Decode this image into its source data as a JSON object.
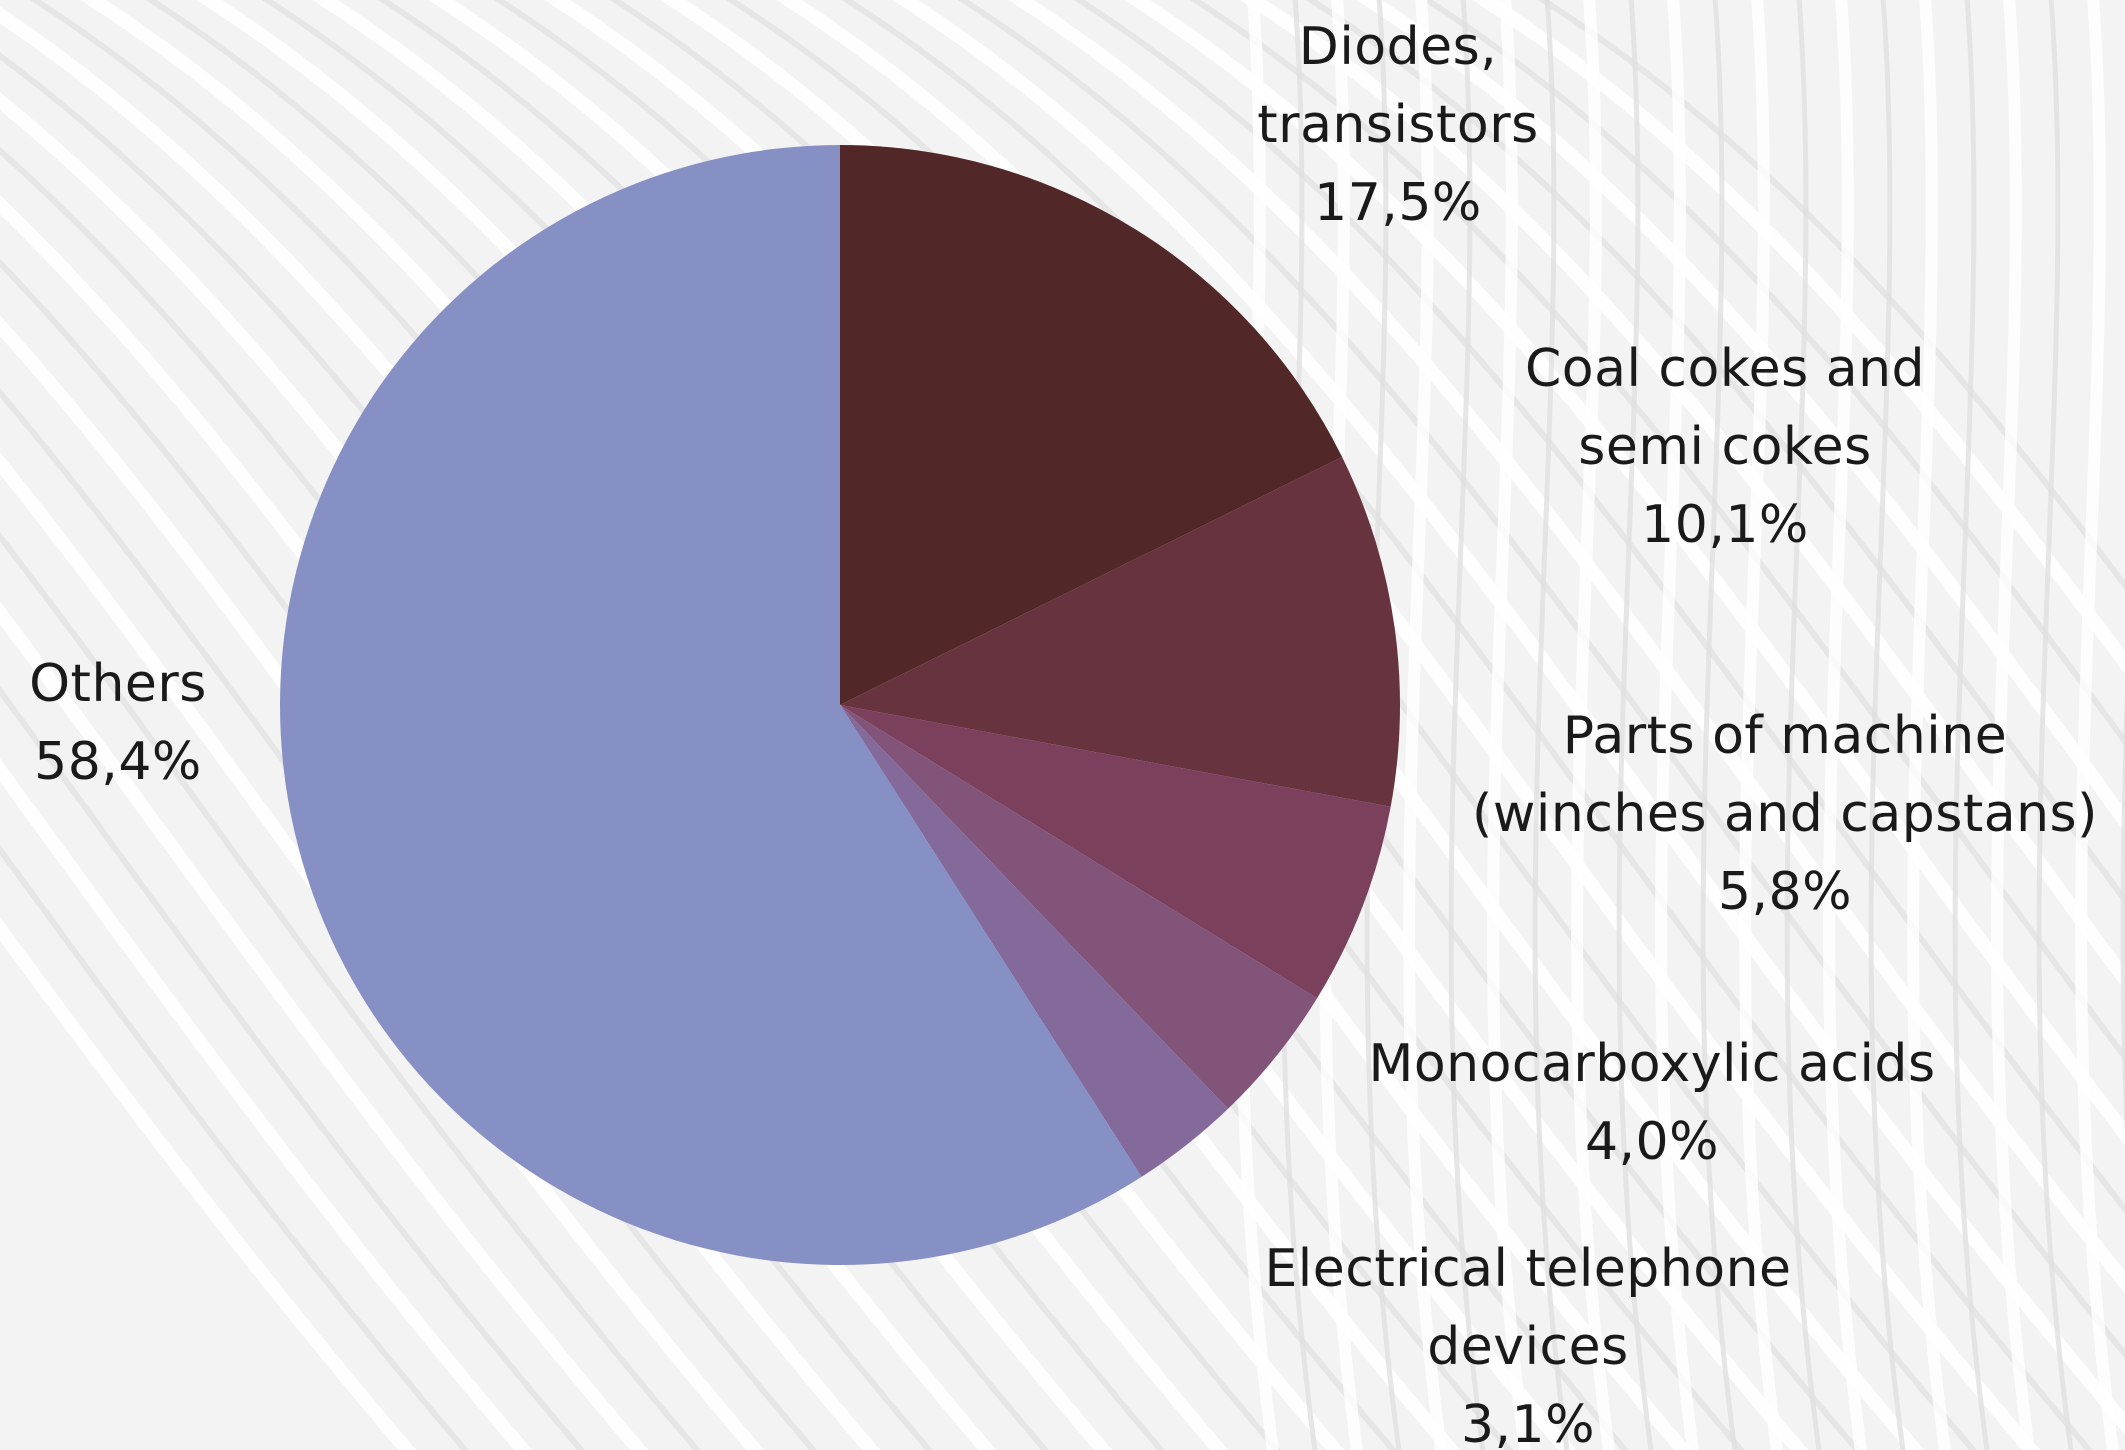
{
  "chart_data": {
    "type": "pie",
    "start_angle_deg": 0,
    "direction": "clockwise",
    "slices": [
      {
        "label_lines": [
          "Diodes,",
          "transistors"
        ],
        "value": 17.5,
        "value_text": "17,5%",
        "color": "#512727"
      },
      {
        "label_lines": [
          "Coal cokes and",
          "semi cokes"
        ],
        "value": 10.1,
        "value_text": "10,1%",
        "color": "#67333e"
      },
      {
        "label_lines": [
          "Parts of machine",
          "(winches and capstans)"
        ],
        "value": 5.8,
        "value_text": "5,8%",
        "color": "#7a405c"
      },
      {
        "label_lines": [
          "Monocarboxylic acids"
        ],
        "value": 4.0,
        "value_text": "4,0%",
        "color": "#825479"
      },
      {
        "label_lines": [
          "Electrical telephone",
          "devices"
        ],
        "value": 3.1,
        "value_text": "3,1%",
        "color": "#846a9b"
      },
      {
        "label_lines": [
          "Others"
        ],
        "value": 58.4,
        "value_text": "58,4%",
        "color": "#8790c4"
      }
    ]
  }
}
